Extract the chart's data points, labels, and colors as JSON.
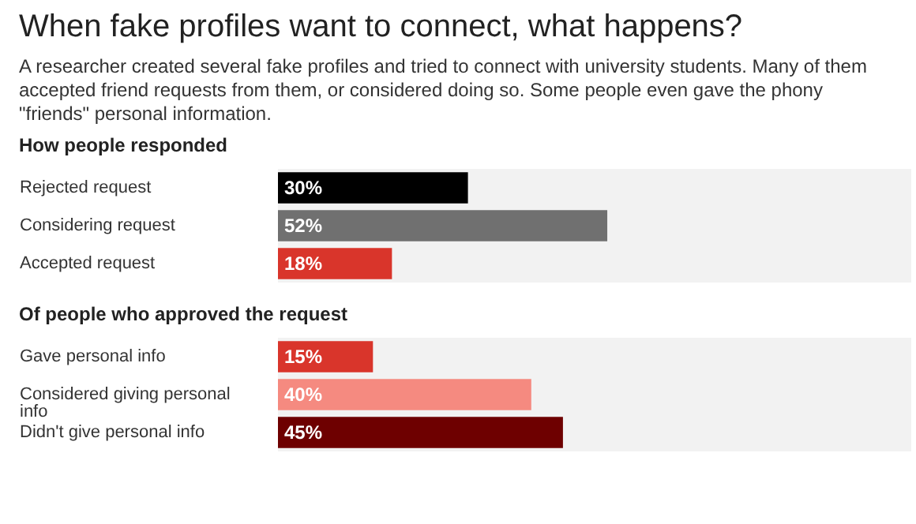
{
  "chart_data": [
    {
      "type": "bar",
      "orientation": "horizontal",
      "title": "When fake profiles want to connect, what happens?",
      "subtitle": "A researcher created several fake profiles and tried to connect with university students. Many of them accepted friend requests from them, or considered doing so. Some people even gave the phony \"friends\" personal information.",
      "annotations": [
        "How people responded"
      ],
      "categories": [
        "Rejected request",
        "Considering request",
        "Accepted request"
      ],
      "values": [
        30,
        52,
        18
      ],
      "colors": [
        "#000000",
        "#707070",
        "#d9352b"
      ],
      "value_labels": [
        "30%",
        "52%",
        "18%"
      ],
      "xlim": [
        0,
        100
      ],
      "tick_labels": "y",
      "grid": false
    },
    {
      "type": "bar",
      "orientation": "horizontal",
      "title": "Of people who approved the request",
      "categories": [
        "Gave personal info",
        "Considered giving personal info",
        "Didn't give personal info"
      ],
      "values": [
        15,
        40,
        45
      ],
      "colors": [
        "#d9352b",
        "#f58a80",
        "#6e0000"
      ],
      "value_labels": [
        "15%",
        "40%",
        "45%"
      ],
      "xlim": [
        0,
        100
      ],
      "tick_labels": "y",
      "grid": false
    }
  ]
}
